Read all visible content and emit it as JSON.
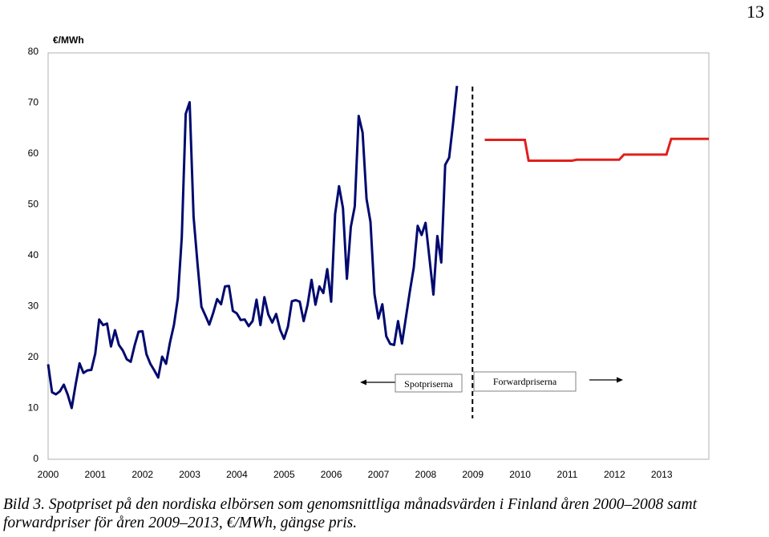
{
  "page_number": "13",
  "caption": {
    "label": "Bild 3.",
    "text": "Spotpriset på den nordiska elbörsen som genomsnittliga månadsvärden i Finland åren 2000–2008 samt forwardpriser för åren 2009–2013, €/MWh, gängse pris."
  },
  "chart_data": {
    "type": "line",
    "unit_label": "€/MWh",
    "ylim": [
      0,
      80
    ],
    "yticks": [
      0,
      10,
      20,
      30,
      40,
      50,
      60,
      70,
      80
    ],
    "xlim": [
      2000,
      2014
    ],
    "xticks": [
      "2000",
      "2001",
      "2002",
      "2003",
      "2004",
      "2005",
      "2006",
      "2007",
      "2008",
      "2009",
      "2010",
      "2011",
      "2012",
      "2013"
    ],
    "divider_x": 2009,
    "legend": {
      "left_label": "Spotpriserna",
      "right_label": "Forwardpriserna"
    },
    "series": [
      {
        "name": "Spotpriserna",
        "color": "#000a6e",
        "x_start": 2000.0,
        "x_step": 0.0833,
        "values": [
          18.5,
          13,
          12.6,
          13.2,
          14.5,
          12.5,
          9.9,
          14.5,
          18.7,
          16.8,
          17.3,
          17.4,
          20.6,
          27.3,
          26.2,
          26.5,
          22,
          25.2,
          22.3,
          21.2,
          19.5,
          19,
          22.2,
          24.9,
          25,
          20.5,
          18.6,
          17.3,
          15.9,
          20,
          18.6,
          22.8,
          26.2,
          31.5,
          43.5,
          67.7,
          70,
          47.5,
          38.3,
          29.8,
          28.1,
          26.3,
          28.6,
          31.3,
          30.3,
          33.8,
          33.9,
          29,
          28.5,
          27.2,
          27.3,
          26,
          27,
          31.2,
          26.2,
          31.7,
          28.3,
          26.7,
          28.4,
          25.3,
          23.5,
          25.9,
          30.9,
          31.1,
          30.8,
          27,
          30.2,
          35.1,
          30.2,
          33.8,
          32.5,
          37.2,
          30.8,
          48,
          53.5,
          49.2,
          35.3,
          45.5,
          49.5,
          67.3,
          64,
          51,
          46.5,
          32.3,
          27.5,
          30.3,
          24,
          22.5,
          22.3,
          27,
          22.6,
          27.7,
          32.8,
          37.5,
          45.7,
          43.9,
          46.3,
          39.3,
          32.2,
          43.7,
          38.5,
          57.7,
          59.1,
          65.8,
          73.2
        ]
      },
      {
        "name": "Forwardpriserna",
        "color": "#e0201b",
        "points": [
          [
            2009.25,
            62.6
          ],
          [
            2010.1,
            62.6
          ],
          [
            2010.18,
            58.5
          ],
          [
            2011.1,
            58.5
          ],
          [
            2011.2,
            58.7
          ],
          [
            2012.1,
            58.7
          ],
          [
            2012.2,
            59.7
          ],
          [
            2013.1,
            59.7
          ],
          [
            2013.2,
            62.8
          ],
          [
            2014.0,
            62.8
          ]
        ]
      }
    ]
  }
}
